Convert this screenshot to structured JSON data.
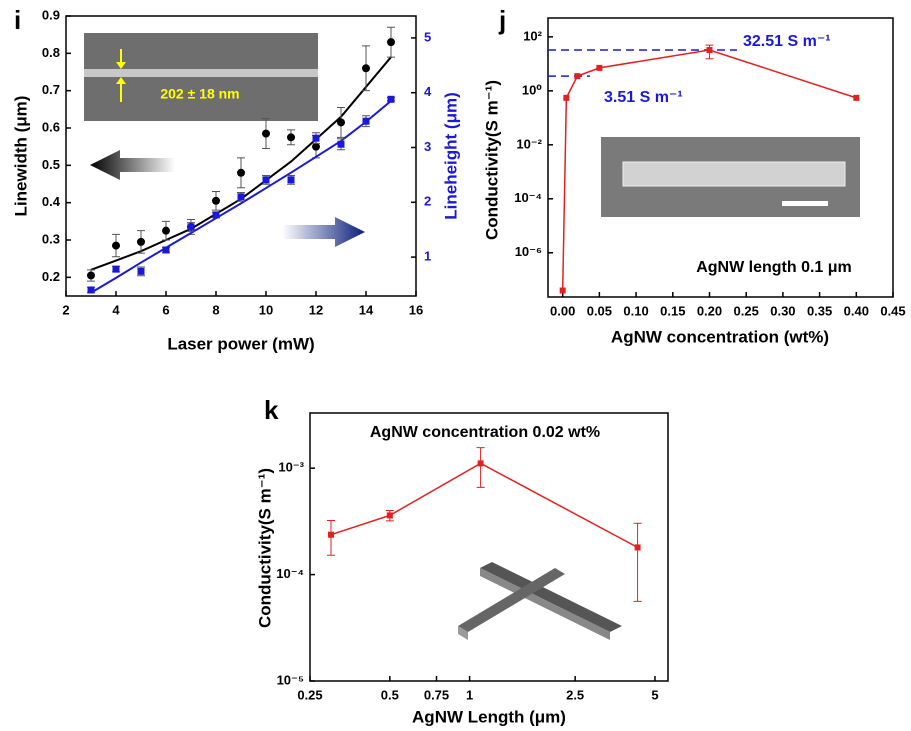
{
  "chart_data": [
    {
      "type": "scatter",
      "panel": "i",
      "x_label": "Laser power (mW)",
      "y_label": "Linewidth (μm)",
      "y2_label": "Lineheight (μm)",
      "xlim": [
        2,
        16
      ],
      "xticks": [
        2,
        4,
        6,
        8,
        10,
        12,
        14,
        16
      ],
      "ylim": [
        0.15,
        0.9
      ],
      "yticks": [
        0.2,
        0.3,
        0.4,
        0.5,
        0.6,
        0.7,
        0.8,
        0.9
      ],
      "y2lim": [
        0.29,
        5.4
      ],
      "y2ticks": [
        1,
        2,
        3,
        4,
        5
      ],
      "x": [
        3,
        4,
        5,
        6,
        7,
        8,
        9,
        10,
        11,
        12,
        13,
        14,
        15
      ],
      "series": [
        {
          "color": "#000000",
          "marker": "circle",
          "values": [
            0.205,
            0.285,
            0.295,
            0.325,
            0.335,
            0.405,
            0.48,
            0.585,
            0.575,
            0.55,
            0.615,
            0.76,
            0.83
          ],
          "errors": [
            0.015,
            0.03,
            0.03,
            0.025,
            0.02,
            0.025,
            0.04,
            0.04,
            0.02,
            0.03,
            0.04,
            0.06,
            0.04
          ],
          "fit": [
            0.22,
            0.245,
            0.27,
            0.3,
            0.33,
            0.37,
            0.41,
            0.46,
            0.51,
            0.57,
            0.63,
            0.71,
            0.79
          ]
        },
        {
          "color": "#1a1ad6",
          "marker": "square",
          "axis": "y2",
          "values": [
            0.4,
            0.78,
            0.74,
            1.13,
            1.55,
            1.77,
            2.1,
            2.41,
            2.41,
            3.17,
            3.06,
            3.48,
            3.88
          ],
          "errors": [
            0.05,
            0.05,
            0.08,
            0.05,
            0.08,
            0.05,
            0.08,
            0.08,
            0.08,
            0.1,
            0.1,
            0.1,
            0.03
          ],
          "fit": [
            0.35,
            0.62,
            0.9,
            1.17,
            1.44,
            1.71,
            1.98,
            2.26,
            2.54,
            2.83,
            3.12,
            3.47,
            3.85
          ]
        }
      ],
      "annotations": [
        "202 ± 18 nm"
      ]
    },
    {
      "type": "line",
      "panel": "j",
      "ylog": true,
      "x_label": "AgNW concentration (wt%)",
      "y_label": "Conductivity(S m⁻¹)",
      "title": "AgNW length 0.1 μm",
      "xlim": [
        -0.02,
        0.45
      ],
      "xticks": [
        {
          "value": 0,
          "label": "0.00"
        },
        {
          "value": 0.05,
          "label": "0.05"
        },
        {
          "value": 0.1,
          "label": "0.10"
        },
        {
          "value": 0.15,
          "label": "0.15"
        },
        {
          "value": 0.2,
          "label": "0.20"
        },
        {
          "value": 0.25,
          "label": "0.25"
        },
        {
          "value": 0.3,
          "label": "0.30"
        },
        {
          "value": 0.35,
          "label": "0.35"
        },
        {
          "value": 0.4,
          "label": "0.40"
        },
        {
          "value": 0.45,
          "label": "0.45"
        }
      ],
      "ylim": [
        2.3e-08,
        500
      ],
      "yticks": [
        {
          "value": 1e-06,
          "label": "10⁻⁶"
        },
        {
          "value": 0.0001,
          "label": "10⁻⁴"
        },
        {
          "value": 0.01,
          "label": "10⁻²"
        },
        {
          "value": 1,
          "label": "10⁰"
        },
        {
          "value": 100,
          "label": "10²"
        }
      ],
      "x": [
        0,
        0.005,
        0.02,
        0.05,
        0.2,
        0.4
      ],
      "series": [
        {
          "color": "#e32020",
          "marker": "square",
          "values": [
            4e-08,
            0.55,
            3.51,
            7.1,
            32.51,
            0.55
          ],
          "errors": [
            null,
            null,
            null,
            null,
            17,
            null
          ]
        }
      ],
      "reference_lines": [
        {
          "value": 32.51,
          "label": "32.51 S m⁻¹",
          "color": "#1a1ad6"
        },
        {
          "value": 3.51,
          "label": "3.51 S m⁻¹",
          "color": "#1a1ad6"
        }
      ]
    },
    {
      "type": "line",
      "panel": "k",
      "xlog": true,
      "ylog": true,
      "x_label": "AgNW Length (μm)",
      "y_label": "Conductivity(S m⁻¹)",
      "title": "AgNW concentration 0.02 wt%",
      "xlim": [
        0.25,
        5.6
      ],
      "xticks": [
        0.25,
        0.5,
        0.75,
        1,
        2.5,
        5
      ],
      "ylim": [
        1e-05,
        0.0033
      ],
      "yticks": [
        {
          "value": 1e-05,
          "label": "10⁻⁵"
        },
        {
          "value": 0.0001,
          "label": "10⁻⁴"
        },
        {
          "value": 0.001,
          "label": "10⁻³"
        }
      ],
      "x": [
        0.3,
        0.5,
        1.1,
        4.3
      ],
      "series": [
        {
          "color": "#e32020",
          "marker": "square",
          "values": [
            0.000237,
            0.00036,
            0.00111,
            0.00018
          ],
          "errors": [
            8.5e-05,
            4e-05,
            0.00045,
            0.000124
          ]
        }
      ]
    }
  ]
}
